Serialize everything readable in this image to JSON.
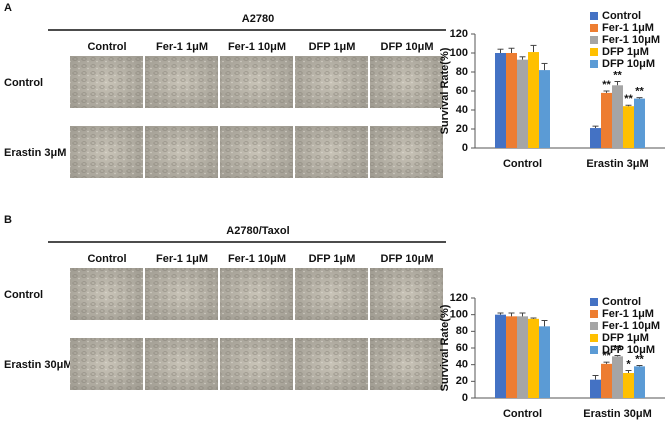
{
  "panels": [
    {
      "letter": "A",
      "cell_line": "A2780",
      "columns": [
        "Control",
        "Fer-1 1μM",
        "Fer-1 10μM",
        "DFP 1μM",
        "DFP 10μM"
      ],
      "rows": [
        "Control",
        "Erastin 3μM"
      ]
    },
    {
      "letter": "B",
      "cell_line": "A2780/Taxol",
      "columns": [
        "Control",
        "Fer-1 1μM",
        "Fer-1 10μM",
        "DFP 1μM",
        "DFP 10μM"
      ],
      "rows": [
        "Control",
        "Erastin 30μM"
      ]
    }
  ],
  "chart_data": [
    {
      "type": "bar",
      "y_label": "Survival Rate(%)",
      "categories": [
        "Control",
        "Erastin 3μM"
      ],
      "ylim": [
        0,
        120
      ],
      "yticks": [
        0,
        20,
        40,
        60,
        80,
        100,
        120
      ],
      "series": [
        {
          "name": "Control",
          "color": "#4472c4",
          "values": [
            100,
            21
          ],
          "errors": [
            4,
            2
          ],
          "sig": [
            null,
            null
          ]
        },
        {
          "name": "Fer-1 1μM",
          "color": "#ed7d31",
          "values": [
            100,
            58
          ],
          "errors": [
            5,
            2
          ],
          "sig": [
            null,
            "**"
          ]
        },
        {
          "name": "Fer-1 10μM",
          "color": "#a5a5a5",
          "values": [
            93,
            66
          ],
          "errors": [
            3,
            4
          ],
          "sig": [
            null,
            "**"
          ]
        },
        {
          "name": "DFP 1μM",
          "color": "#ffc000",
          "values": [
            101,
            44
          ],
          "errors": [
            7,
            1
          ],
          "sig": [
            null,
            "**"
          ]
        },
        {
          "name": "DFP 10μM",
          "color": "#5b9bd5",
          "values": [
            82,
            52
          ],
          "errors": [
            7,
            1
          ],
          "sig": [
            null,
            "**"
          ]
        }
      ]
    },
    {
      "type": "bar",
      "y_label": "Survival Rate(%)",
      "categories": [
        "Control",
        "Erastin 30μM"
      ],
      "ylim": [
        0,
        120
      ],
      "yticks": [
        0,
        20,
        40,
        60,
        80,
        100,
        120
      ],
      "series": [
        {
          "name": "Control",
          "color": "#4472c4",
          "values": [
            100,
            22
          ],
          "errors": [
            2,
            5
          ],
          "sig": [
            null,
            null
          ]
        },
        {
          "name": "Fer-1 1μM",
          "color": "#ed7d31",
          "values": [
            98,
            41
          ],
          "errors": [
            4,
            2
          ],
          "sig": [
            null,
            "**"
          ]
        },
        {
          "name": "Fer-1 10μM",
          "color": "#a5a5a5",
          "values": [
            98,
            50
          ],
          "errors": [
            4,
            1
          ],
          "sig": [
            null,
            "**"
          ]
        },
        {
          "name": "DFP 1μM",
          "color": "#ffc000",
          "values": [
            95,
            30
          ],
          "errors": [
            1,
            3
          ],
          "sig": [
            null,
            "*"
          ]
        },
        {
          "name": "DFP 10μM",
          "color": "#5b9bd5",
          "values": [
            86,
            38
          ],
          "errors": [
            7,
            1
          ],
          "sig": [
            null,
            "**"
          ]
        }
      ]
    }
  ]
}
